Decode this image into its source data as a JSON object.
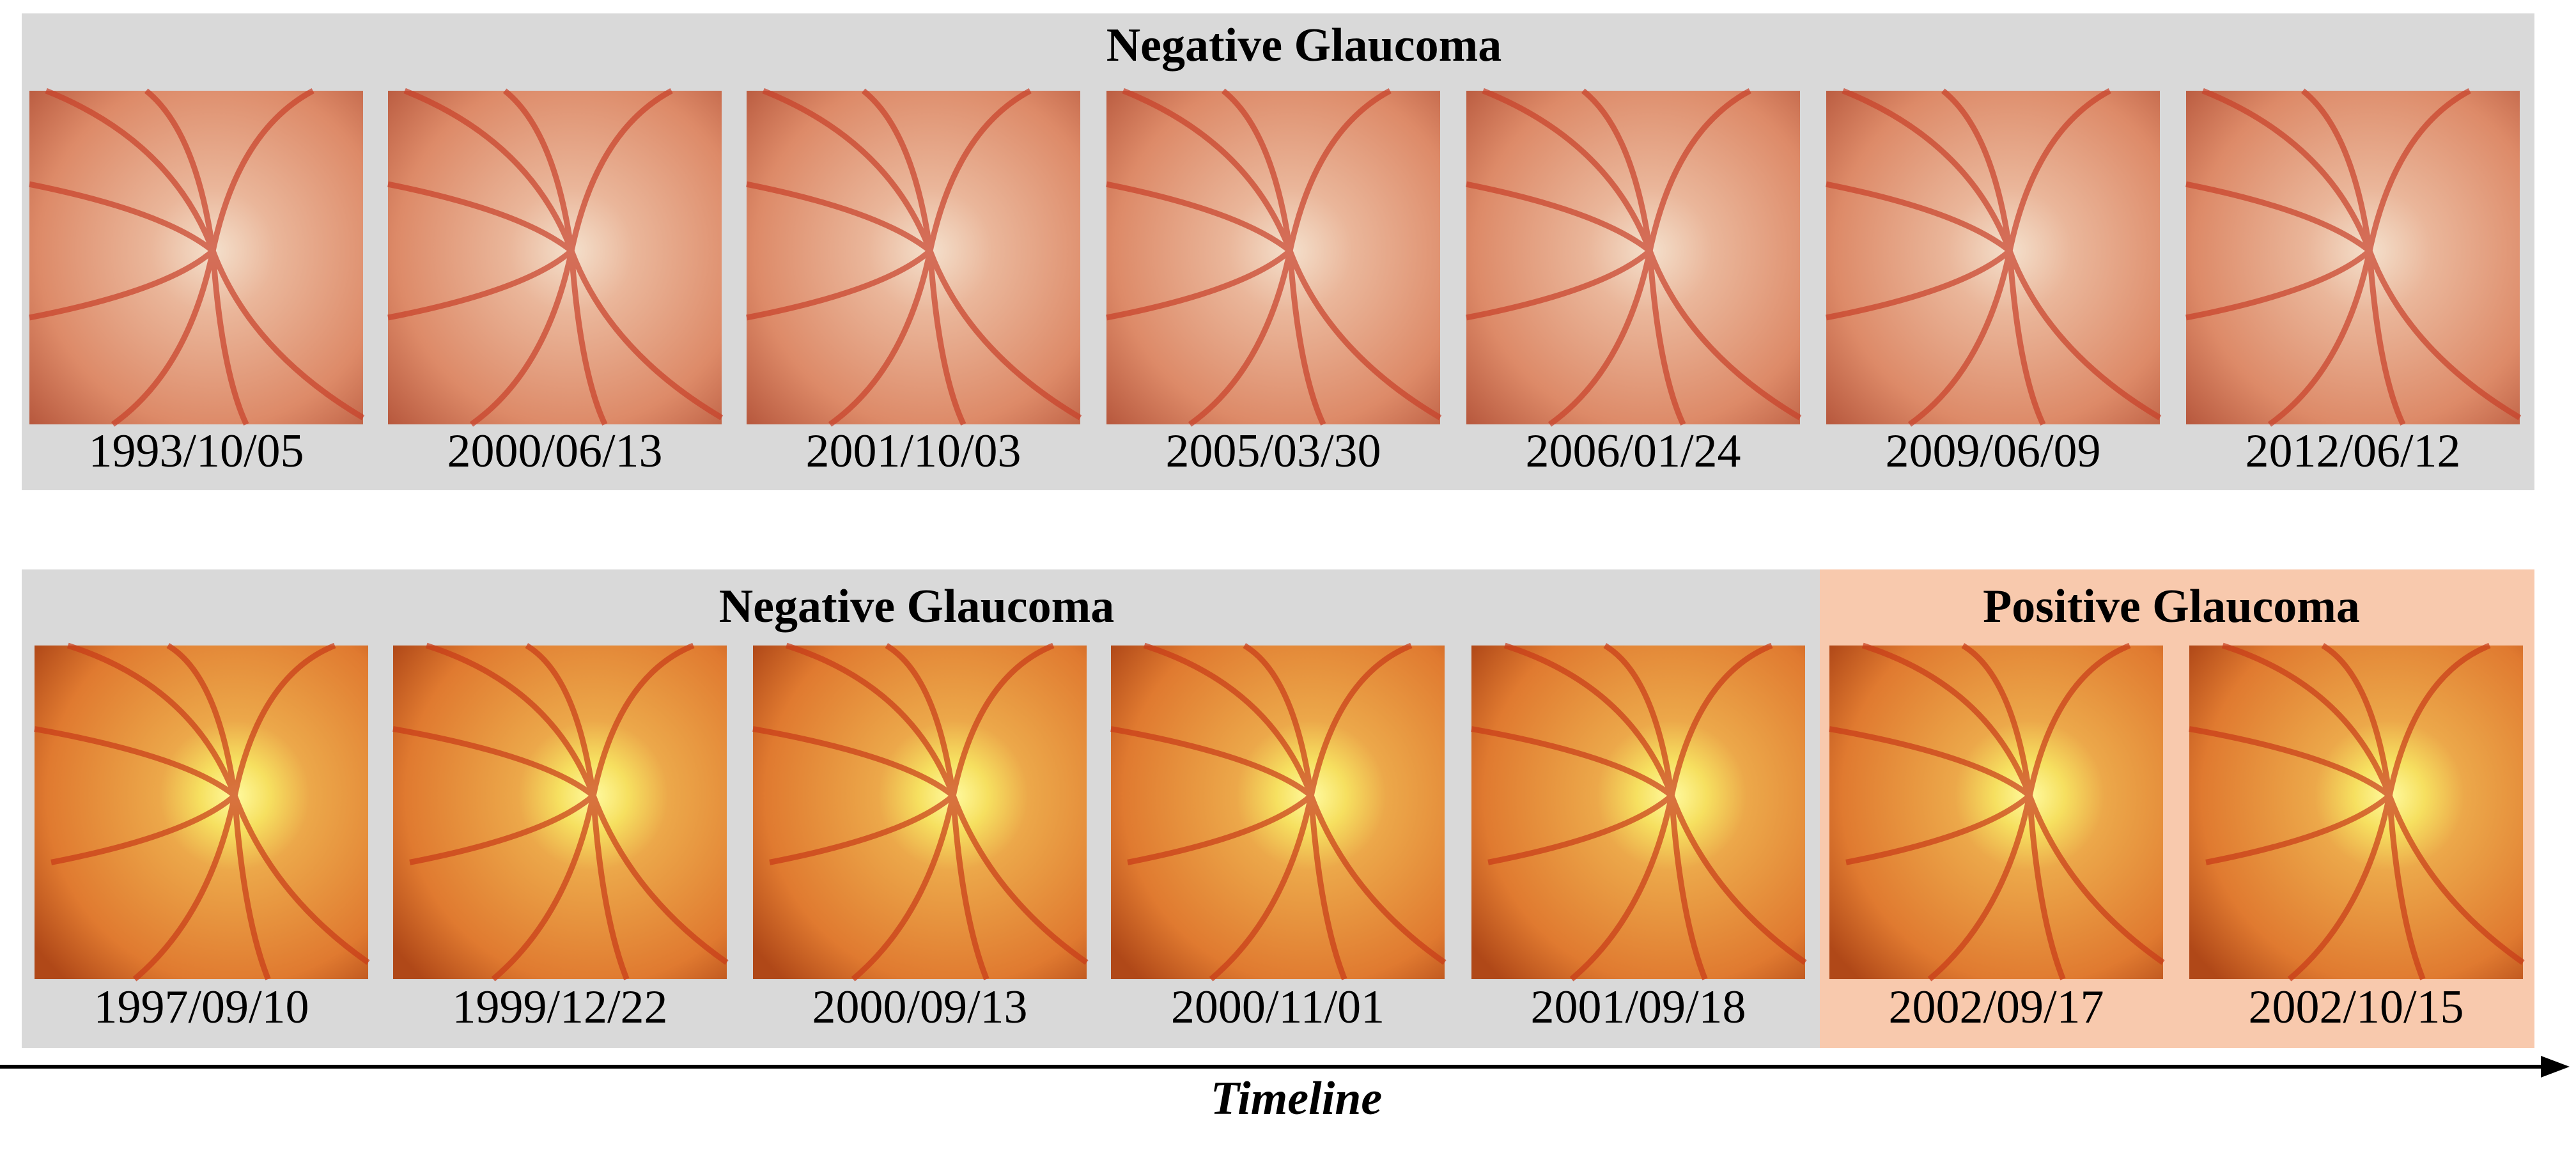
{
  "rows": [
    {
      "groups": [
        {
          "title": "Negative Glaucoma",
          "dates": [
            "1993/10/05",
            "2000/06/13",
            "2001/10/03",
            "2005/03/30",
            "2006/01/24",
            "2009/06/09",
            "2012/06/12"
          ]
        }
      ]
    },
    {
      "groups": [
        {
          "title": "Negative Glaucoma",
          "dates": [
            "1997/09/10",
            "1999/12/22",
            "2000/09/13",
            "2000/11/01",
            "2001/09/18"
          ]
        },
        {
          "title": "Positive Glaucoma",
          "dates": [
            "2002/09/17",
            "2002/10/15"
          ]
        }
      ]
    }
  ],
  "timeline": "Timeline"
}
